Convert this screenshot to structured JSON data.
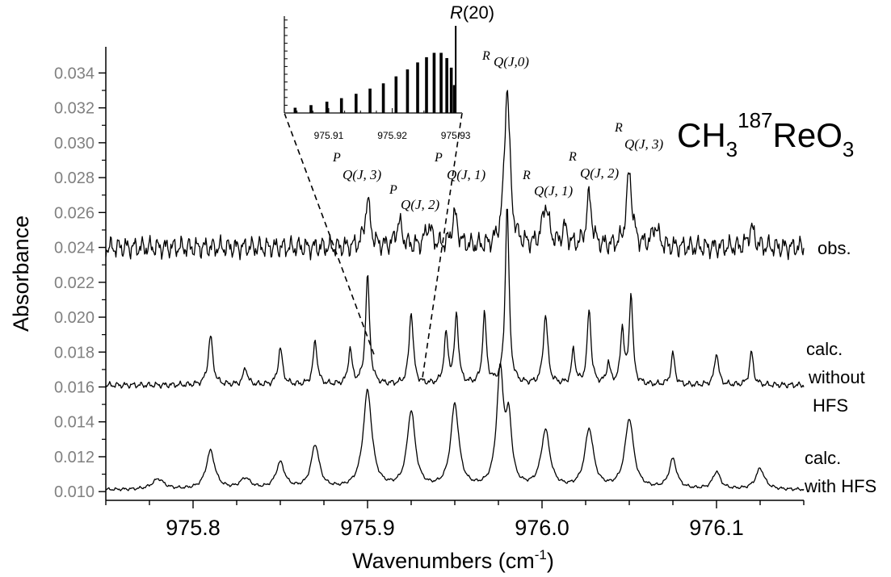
{
  "chart_data": {
    "type": "line",
    "title": "CH3 187 ReO3",
    "title_parts": {
      "base": "CH",
      "sub1": "3",
      "sup": "187",
      "mid": "ReO",
      "sub2": "3"
    },
    "xlabel": "Wavenumbers (cm-1)",
    "xlabel_parts": {
      "main": "Wavenumbers (cm",
      "sup": "-1",
      "end": ")"
    },
    "ylabel": "Absorbance",
    "xlim": [
      975.75,
      976.15
    ],
    "ylim": [
      0.0095,
      0.0355
    ],
    "x_ticks": [
      975.8,
      975.9,
      976.0,
      976.1
    ],
    "x_tick_labels": [
      "975.8",
      "975.9",
      "976.0",
      "976.1"
    ],
    "y_ticks": [
      0.01,
      0.012,
      0.014,
      0.016,
      0.018,
      0.02,
      0.022,
      0.024,
      0.026,
      0.028,
      0.03,
      0.032,
      0.034
    ],
    "y_tick_labels": [
      "0.010",
      "0.012",
      "0.014",
      "0.016",
      "0.018",
      "0.020",
      "0.022",
      "0.024",
      "0.026",
      "0.028",
      "0.030",
      "0.032",
      "0.034"
    ],
    "grid": false,
    "series": [
      {
        "name": "obs.",
        "label_lines": [
          "obs."
        ],
        "baseline": 0.024,
        "noise": 0.0007,
        "peaks": [
          {
            "x": 975.9,
            "h": 0.0027,
            "w": 0.0018
          },
          {
            "x": 975.918,
            "h": 0.0014,
            "w": 0.002
          },
          {
            "x": 975.935,
            "h": 0.0012,
            "w": 0.0022
          },
          {
            "x": 975.95,
            "h": 0.0018,
            "w": 0.002
          },
          {
            "x": 975.98,
            "h": 0.0092,
            "w": 0.0019
          },
          {
            "x": 976.002,
            "h": 0.0024,
            "w": 0.0022
          },
          {
            "x": 976.013,
            "h": 0.001,
            "w": 0.0018
          },
          {
            "x": 976.027,
            "h": 0.0029,
            "w": 0.0018
          },
          {
            "x": 976.05,
            "h": 0.0043,
            "w": 0.0019
          },
          {
            "x": 976.065,
            "h": 0.0012,
            "w": 0.002
          },
          {
            "x": 976.12,
            "h": 0.0011,
            "w": 0.002
          }
        ]
      },
      {
        "name": "calc. without HFS",
        "label_lines": [
          "calc.",
          "without",
          "HFS"
        ],
        "baseline": 0.0161,
        "noise": 0.0002,
        "peaks": [
          {
            "x": 975.81,
            "h": 0.0028,
            "w": 0.0016
          },
          {
            "x": 975.83,
            "h": 0.001,
            "w": 0.0014
          },
          {
            "x": 975.85,
            "h": 0.0021,
            "w": 0.0015
          },
          {
            "x": 975.87,
            "h": 0.0025,
            "w": 0.0014
          },
          {
            "x": 975.89,
            "h": 0.002,
            "w": 0.0013
          },
          {
            "x": 975.9,
            "h": 0.0062,
            "w": 0.0014
          },
          {
            "x": 975.925,
            "h": 0.0042,
            "w": 0.0014
          },
          {
            "x": 975.945,
            "h": 0.0028,
            "w": 0.0014
          },
          {
            "x": 975.951,
            "h": 0.004,
            "w": 0.0013
          },
          {
            "x": 975.967,
            "h": 0.004,
            "w": 0.0013
          },
          {
            "x": 975.98,
            "h": 0.0103,
            "w": 0.0013
          },
          {
            "x": 976.002,
            "h": 0.004,
            "w": 0.0015
          },
          {
            "x": 976.018,
            "h": 0.002,
            "w": 0.0012
          },
          {
            "x": 976.027,
            "h": 0.0043,
            "w": 0.0013
          },
          {
            "x": 976.038,
            "h": 0.0012,
            "w": 0.0012
          },
          {
            "x": 976.046,
            "h": 0.0032,
            "w": 0.0012
          },
          {
            "x": 976.051,
            "h": 0.0052,
            "w": 0.0012
          },
          {
            "x": 976.075,
            "h": 0.0018,
            "w": 0.0013
          },
          {
            "x": 976.1,
            "h": 0.0019,
            "w": 0.0013
          },
          {
            "x": 976.12,
            "h": 0.0019,
            "w": 0.0013
          }
        ]
      },
      {
        "name": "calc. with HFS",
        "label_lines": [
          "calc.",
          "with HFS"
        ],
        "baseline": 0.0101,
        "noise": 0.0001,
        "peaks": [
          {
            "x": 975.78,
            "h": 0.0006,
            "w": 0.004
          },
          {
            "x": 975.81,
            "h": 0.0022,
            "w": 0.003
          },
          {
            "x": 975.83,
            "h": 0.0006,
            "w": 0.0035
          },
          {
            "x": 975.85,
            "h": 0.0015,
            "w": 0.003
          },
          {
            "x": 975.87,
            "h": 0.0025,
            "w": 0.0028
          },
          {
            "x": 975.9,
            "h": 0.0056,
            "w": 0.003
          },
          {
            "x": 975.925,
            "h": 0.0044,
            "w": 0.0028
          },
          {
            "x": 975.95,
            "h": 0.0048,
            "w": 0.0028
          },
          {
            "x": 975.976,
            "h": 0.0066,
            "w": 0.0024
          },
          {
            "x": 975.981,
            "h": 0.0035,
            "w": 0.002
          },
          {
            "x": 976.002,
            "h": 0.0033,
            "w": 0.003
          },
          {
            "x": 976.027,
            "h": 0.0034,
            "w": 0.003
          },
          {
            "x": 976.05,
            "h": 0.004,
            "w": 0.003
          },
          {
            "x": 976.075,
            "h": 0.0017,
            "w": 0.0026
          },
          {
            "x": 976.1,
            "h": 0.001,
            "w": 0.0026
          },
          {
            "x": 976.125,
            "h": 0.0012,
            "w": 0.003
          }
        ]
      }
    ],
    "annotations": [
      {
        "pre": "P",
        "main": "Q(J, 3)",
        "x": 975.9
      },
      {
        "pre": "P",
        "main": "Q(J, 2)",
        "x": 975.925
      },
      {
        "pre": "P",
        "main": "Q(J, 1)",
        "x": 975.95
      },
      {
        "pre": "R",
        "main": "Q(J,0)",
        "x": 975.98
      },
      {
        "pre": "R",
        "main": "Q(J, 1)",
        "x": 976.002
      },
      {
        "pre": "R",
        "main": "Q(J, 2)",
        "x": 976.027
      },
      {
        "pre": "R",
        "main": "Q(J, 3)",
        "x": 976.05
      }
    ],
    "inset": {
      "xlim": [
        975.903,
        975.931
      ],
      "x_ticks": [
        975.91,
        975.92,
        975.93
      ],
      "x_tick_labels": [
        "975.91",
        "975.92",
        "975.93"
      ],
      "bars": [
        {
          "x": 975.9047,
          "h": 0.06
        },
        {
          "x": 975.9072,
          "h": 0.09
        },
        {
          "x": 975.9097,
          "h": 0.13
        },
        {
          "x": 975.912,
          "h": 0.17
        },
        {
          "x": 975.9143,
          "h": 0.22
        },
        {
          "x": 975.9165,
          "h": 0.28
        },
        {
          "x": 975.9186,
          "h": 0.34
        },
        {
          "x": 975.9206,
          "h": 0.42
        },
        {
          "x": 975.9224,
          "h": 0.5
        },
        {
          "x": 975.924,
          "h": 0.58
        },
        {
          "x": 975.9254,
          "h": 0.64
        },
        {
          "x": 975.9266,
          "h": 0.69
        },
        {
          "x": 975.9277,
          "h": 0.69
        },
        {
          "x": 975.9286,
          "h": 0.63
        },
        {
          "x": 975.9293,
          "h": 0.52
        },
        {
          "x": 975.9298,
          "h": 0.32
        },
        {
          "x": 975.93,
          "h": 1.0
        }
      ],
      "peak_label_pre": "R",
      "peak_label_main": "(20)"
    }
  }
}
